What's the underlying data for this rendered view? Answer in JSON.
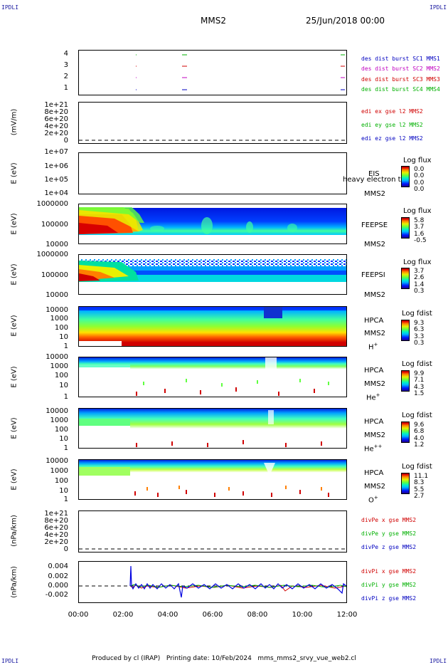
{
  "corners": {
    "tl": "IPDLI",
    "tr": "IPDLI",
    "bl": "IPDLI",
    "br": "IPDLI"
  },
  "header": {
    "spacecraft": "MMS2",
    "datetime": "25/Jun/2018 00:00"
  },
  "footer": {
    "text": "Produced by cl (IRAP)   Printing date: 10/Feb/2024   mms_mms2_srvy_vue_web2.cl"
  },
  "x_ticks": [
    "00:00",
    "02:00",
    "04:00",
    "06:00",
    "08:00",
    "10:00",
    "12:00"
  ],
  "panels": {
    "p1": {
      "yticks": [
        "4",
        "3",
        "2",
        "1"
      ],
      "legend": [
        {
          "text": "des dist burst SC1 MMS1",
          "color": "#0000c0"
        },
        {
          "text": "des dist burst SC2 MMS2",
          "color": "#c000c0"
        },
        {
          "text": "des dist burst SC3 MMS3",
          "color": "#d00000"
        },
        {
          "text": "des dist burst SC4 MMS4",
          "color": "#00b000"
        }
      ]
    },
    "p2": {
      "ylabel": "(mV/m)",
      "yticks": [
        "1e+21",
        "8e+20",
        "6e+20",
        "4e+20",
        "2e+20",
        "0"
      ],
      "legend": [
        {
          "text": "edi ex gse l2 MMS2",
          "color": "#d00000"
        },
        {
          "text": "edi ey gse l2 MMS2",
          "color": "#00b000"
        },
        {
          "text": "edi ez gse l2 MMS2",
          "color": "#0000c0"
        }
      ]
    },
    "p3": {
      "ylabel": "E (eV)",
      "yticks": [
        "1e+07",
        "1e+06",
        "1e+05",
        "1e+04"
      ],
      "instrument": "EIS",
      "overlay": "heavy electron to",
      "sc": "MMS2",
      "cb_title": "Log flux",
      "cb_values": [
        "0.0",
        "0.0",
        "0.0",
        "0.0"
      ]
    },
    "p4": {
      "ylabel": "E (eV)",
      "yticks": [
        "1000000",
        "100000",
        "10000"
      ],
      "instrument": "FEEPSE",
      "sc": "MMS2",
      "cb_title": "Log flux",
      "cb_values": [
        "5.8",
        "3.7",
        "1.6",
        "-0.5"
      ]
    },
    "p5": {
      "ylabel": "E (eV)",
      "yticks": [
        "1000000",
        "100000",
        "10000"
      ],
      "instrument": "FEEPSI",
      "sc": "MMS2",
      "cb_title": "Log flux",
      "cb_values": [
        "3.7",
        "2.6",
        "1.4",
        "0.3"
      ]
    },
    "p6": {
      "ylabel": "E (eV)",
      "yticks": [
        "10000",
        "1000",
        "100",
        "10",
        "1"
      ],
      "instrument": "HPCA",
      "sc": "MMS2",
      "species": "H",
      "species_sup": "+",
      "cb_title": "Log fdist",
      "cb_values": [
        "9.3",
        "6.3",
        "3.3",
        "0.3"
      ]
    },
    "p7": {
      "ylabel": "E (eV)",
      "yticks": [
        "10000",
        "1000",
        "100",
        "10",
        "1"
      ],
      "instrument": "HPCA",
      "sc": "MMS2",
      "species": "He",
      "species_sup": "+",
      "cb_title": "Log fdist",
      "cb_values": [
        "9.9",
        "7.1",
        "4.3",
        "1.5"
      ]
    },
    "p8": {
      "ylabel": "E (eV)",
      "yticks": [
        "10000",
        "1000",
        "100",
        "10",
        "1"
      ],
      "instrument": "HPCA",
      "sc": "MMS2",
      "species": "He",
      "species_sup": "++",
      "cb_title": "Log fdist",
      "cb_values": [
        "9.6",
        "6.8",
        "4.0",
        "1.2"
      ]
    },
    "p9": {
      "ylabel": "E (eV)",
      "yticks": [
        "10000",
        "1000",
        "100",
        "10",
        "1"
      ],
      "instrument": "HPCA",
      "sc": "MMS2",
      "species": "O",
      "species_sup": "+",
      "cb_title": "Log fdist",
      "cb_values": [
        "11.1",
        "8.3",
        "5.5",
        "2.7"
      ]
    },
    "p10": {
      "ylabel": "(nPa/km)",
      "yticks": [
        "1e+21",
        "8e+20",
        "6e+20",
        "4e+20",
        "2e+20",
        "0"
      ],
      "legend": [
        {
          "text": "divPe x gse MMS2",
          "color": "#d00000"
        },
        {
          "text": "divPe y gse MMS2",
          "color": "#00b000"
        },
        {
          "text": "divPe z gse MMS2",
          "color": "#0000c0"
        }
      ]
    },
    "p11": {
      "ylabel": "(nPa/km)",
      "yticks": [
        "0.004",
        "0.002",
        "0.000",
        "-0.002"
      ],
      "legend": [
        {
          "text": "divPi x gse MMS2",
          "color": "#d00000"
        },
        {
          "text": "divPi y gse MMS2",
          "color": "#00b000"
        },
        {
          "text": "divPi z gse MMS2",
          "color": "#0000c0"
        }
      ]
    }
  },
  "chart_data": {
    "type": "heatmap",
    "x_range": [
      "00:00",
      "12:00"
    ],
    "burst_intervals": [
      {
        "sc": "MMS1",
        "y": 1,
        "times": [
          "02:30",
          "04:40",
          "11:55"
        ]
      },
      {
        "sc": "MMS2",
        "y": 2,
        "times": [
          "02:30",
          "04:40",
          "11:55"
        ]
      },
      {
        "sc": "MMS3",
        "y": 3,
        "times": [
          "02:30",
          "04:40",
          "11:55"
        ]
      },
      {
        "sc": "MMS4",
        "y": 4,
        "times": [
          "02:30",
          "04:40",
          "11:55"
        ]
      }
    ],
    "divPi_z_spikes": [
      {
        "time": "02:25",
        "value": 0.005
      },
      {
        "time": "04:30",
        "value": -0.002
      }
    ],
    "divPi_range": [
      -0.003,
      0.005
    ]
  }
}
